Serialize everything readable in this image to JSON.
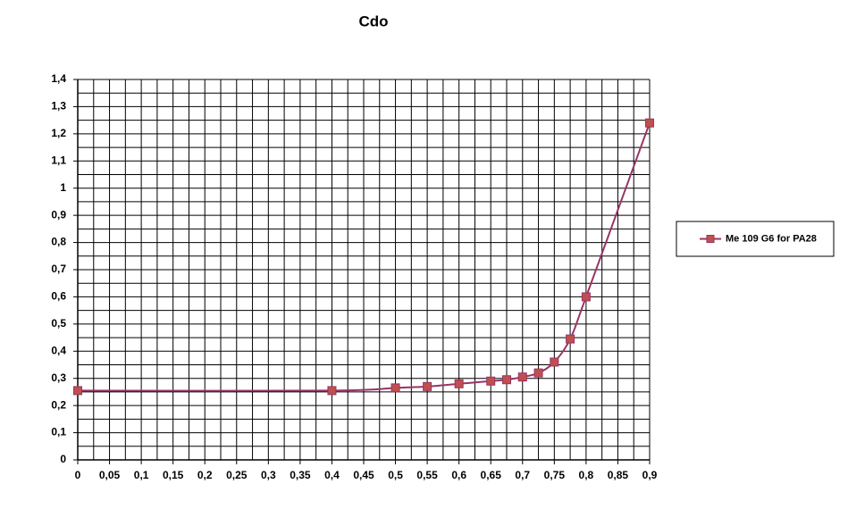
{
  "chart_data": {
    "type": "line",
    "title": "Cdo",
    "x": [
      0,
      0.4,
      0.5,
      0.55,
      0.6,
      0.65,
      0.675,
      0.7,
      0.725,
      0.75,
      0.775,
      0.8,
      0.9
    ],
    "series": [
      {
        "name": "Me 109 G6 for PA28",
        "color": "#993366",
        "marker_color": "#c0504d",
        "values": [
          0.255,
          0.255,
          0.265,
          0.27,
          0.28,
          0.29,
          0.295,
          0.305,
          0.32,
          0.36,
          0.445,
          0.6,
          1.24
        ]
      }
    ],
    "xlim": [
      0,
      0.9
    ],
    "xticks": [
      0,
      {
        "value": 0.05,
        "label": "0,05"
      },
      {
        "value": 0.1,
        "label": "0,1"
      },
      {
        "value": 0.15,
        "label": "0,15"
      },
      {
        "value": 0.2,
        "label": "0,2"
      },
      {
        "value": 0.25,
        "label": "0,25"
      },
      {
        "value": 0.3,
        "label": "0,3"
      },
      {
        "value": 0.35,
        "label": "0,35"
      },
      {
        "value": 0.4,
        "label": "0,4"
      },
      {
        "value": 0.45,
        "label": "0,45"
      },
      {
        "value": 0.5,
        "label": "0,5"
      },
      {
        "value": 0.55,
        "label": "0,55"
      },
      {
        "value": 0.6,
        "label": "0,6"
      },
      {
        "value": 0.65,
        "label": "0,65"
      },
      {
        "value": 0.7,
        "label": "0,7"
      },
      {
        "value": 0.75,
        "label": "0,75"
      },
      {
        "value": 0.8,
        "label": "0,8"
      },
      {
        "value": 0.85,
        "label": "0,85"
      },
      {
        "value": 0.9,
        "label": "0,9"
      }
    ],
    "ylim": [
      0,
      1.4
    ],
    "yticks": [
      0,
      {
        "value": 0.1,
        "label": "0,1"
      },
      {
        "value": 0.2,
        "label": "0,2"
      },
      {
        "value": 0.3,
        "label": "0,3"
      },
      {
        "value": 0.4,
        "label": "0,4"
      },
      {
        "value": 0.5,
        "label": "0,5"
      },
      {
        "value": 0.6,
        "label": "0,6"
      },
      {
        "value": 0.7,
        "label": "0,7"
      },
      {
        "value": 0.8,
        "label": "0,8"
      },
      {
        "value": 0.9,
        "label": "0,9"
      },
      1,
      {
        "value": 1.1,
        "label": "1,1"
      },
      {
        "value": 1.2,
        "label": "1,2"
      },
      {
        "value": 1.3,
        "label": "1,3"
      },
      {
        "value": 1.4,
        "label": "1,4"
      }
    ],
    "grid": true,
    "minor_grid": true,
    "legend": "right"
  }
}
